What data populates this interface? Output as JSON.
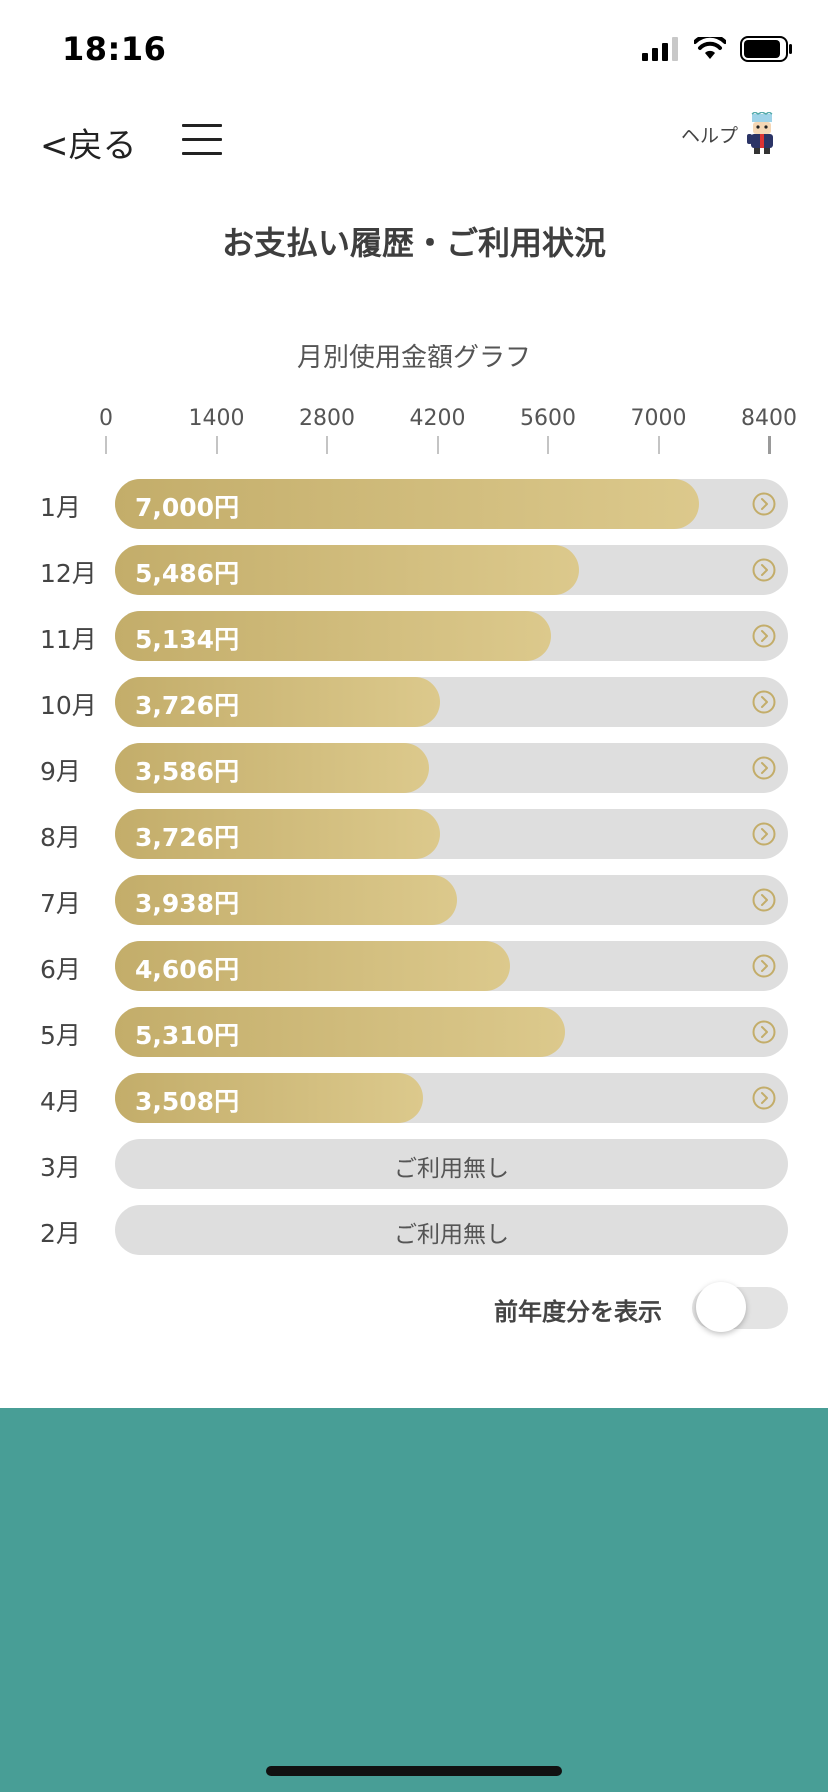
{
  "status_bar": {
    "time": "18:16"
  },
  "nav": {
    "back_label": "<戻る",
    "help_label": "ヘルプ"
  },
  "page_title": "お支払い履歴・ご利用状況",
  "chart_data": {
    "type": "bar",
    "orientation": "horizontal",
    "title": "月別使用金額グラフ",
    "xlim": [
      0,
      8400
    ],
    "ticks": [
      "0",
      "1400",
      "2800",
      "4200",
      "5600",
      "7000",
      "8400"
    ],
    "categories": [
      "1月",
      "12月",
      "11月",
      "10月",
      "9月",
      "8月",
      "7月",
      "6月",
      "5月",
      "4月",
      "3月",
      "2月"
    ],
    "values": [
      7000,
      5486,
      5134,
      3726,
      3586,
      3726,
      3938,
      4606,
      5310,
      3508,
      null,
      null
    ],
    "value_labels": [
      "7,000円",
      "5,486円",
      "5,134円",
      "3,726円",
      "3,586円",
      "3,726円",
      "3,938円",
      "4,606円",
      "5,310円",
      "3,508円",
      "ご利用無し",
      "ご利用無し"
    ]
  },
  "toggle": {
    "label": "前年度分を表示",
    "on": false
  },
  "colors": {
    "bar": "#c9b575",
    "track": "#dedede",
    "footer": "#489e96",
    "chevron": "#c3ad6a"
  }
}
